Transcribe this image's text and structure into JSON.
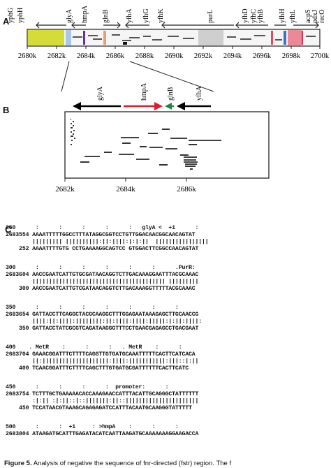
{
  "panels": {
    "a": "A",
    "b": "B",
    "c": "C"
  },
  "panel_a": {
    "genes": [
      "yphG",
      "yphH",
      "glyA",
      "hmpA",
      "glnB",
      "yfhA",
      "yfhG",
      "yfhK",
      "purL",
      "yfhD",
      "yfhC",
      "yfhB",
      "yfhH",
      "yfhL",
      "acpS",
      "pdxJ",
      "recO"
    ],
    "ticks": [
      "2680k",
      "2682k",
      "2684k",
      "2686k",
      "2688k",
      "2690k",
      "2692k",
      "2694k",
      "2696k",
      "2698k",
      "2700k"
    ]
  },
  "panel_b": {
    "genes": [
      "glyA",
      "hmpA",
      "glnB",
      "yfhA"
    ],
    "ticks": [
      "2682k",
      "2684k",
      "2686k"
    ]
  },
  "panel_c": {
    "blocks": [
      {
        "top": "250      :      :      :      :      :   glyA <  +1      :",
        "seq1": "2683554 AAAATTTTTGGCCTTTATAGGCGGTCCTGTTGGACAACGGCAACAGTAT",
        "bars": "        ||||||||| ||||||||||:||:||||:|:|:||  ||||||||||||||||",
        "seq2": "    252 AAAATTTTGTG CCTGAAAAGGCAGTCC GTGGACTTCGGCCAACAGTAT"
      },
      {
        "top": "300      :      :      :      :      :      :      .PurR:",
        "seq1": "2683604 AACCGAATCATTGTGCGATAACAGGTCTTGACAAAGGAATTTACGCAAAC",
        "bars": "        |||||||||||||||||||||||||||||||||||||||| |||||||||",
        "seq2": "    300 AACCGAATCATTGTCGATAACAGGTCTTGACAAAGGTTTTTACGCAAAC"
      },
      {
        "top": "350      :      :      :      :      :      :      :",
        "seq1": "2683654 GATTACCTTCAGGCTACGCAAGGCTTTGGAGAATAAAGAGCTTGCAACCG",
        "bars": "        ||||:||:||||:||||||||:||:||||:||||:|||||:|:||:||||:",
        "seq2": "    350 GATTACCTATCGCGTCAGATAAGGGTTTCCTGAACGAGAGCCTGACGAAT"
      },
      {
        "top": "400    . MetR    :      :      :   . MetR    :      :",
        "seq1": "2683704 GAAACGGATTTCTTTTCAGGTTGTGATGCAAATTTTTCACTTCATCACA",
        "bars": "        ||:||||||||||||||||||||:||||:|||||||||||:|||::|:||",
        "seq2": "    400 TCAACGGATTTCTTTTCAGCTTTGTGATGCGATTTTTTCACTTCATC",
        "ul": "2683704 GAAACGGATTTCTTTTCAGGTTGTGATGCAAATTTTTCACTTCAT"
      },
      {
        "top": "450      :      :      :      :  promoter:      :",
        "seq1": "2683754 TCTTTGCTGAAAAACACCAAAGAACCATTTACATTGCAGGGCTATTTTTT",
        "bars": "        :|:|| :|:||::|::|||||||:||::||||||||||||||||||||||",
        "seq2": "    450 TCCATAACGTAAAGCAGAGAGATCCATTTACAATGCAAGGGTATTTTT",
        "ul": "2683754 TCTTTGCTGAAAAACACCAAAGAACCATTTACATTGCAGGGCTATTTT"
      },
      {
        "top": "500      :      :  +1     : >hmpA    :      :      :",
        "seq1": "2683804 ATAAGATGCATTTGAGATACATCAATTAAGATGCAAAAAAAGGAAGACCA",
        "bars": "",
        "seq2": ""
      }
    ]
  },
  "caption": {
    "bold": "Figure 5.",
    "rest": " Analysis of negative the sequence of fnr-directed (fstr) region. The f"
  }
}
